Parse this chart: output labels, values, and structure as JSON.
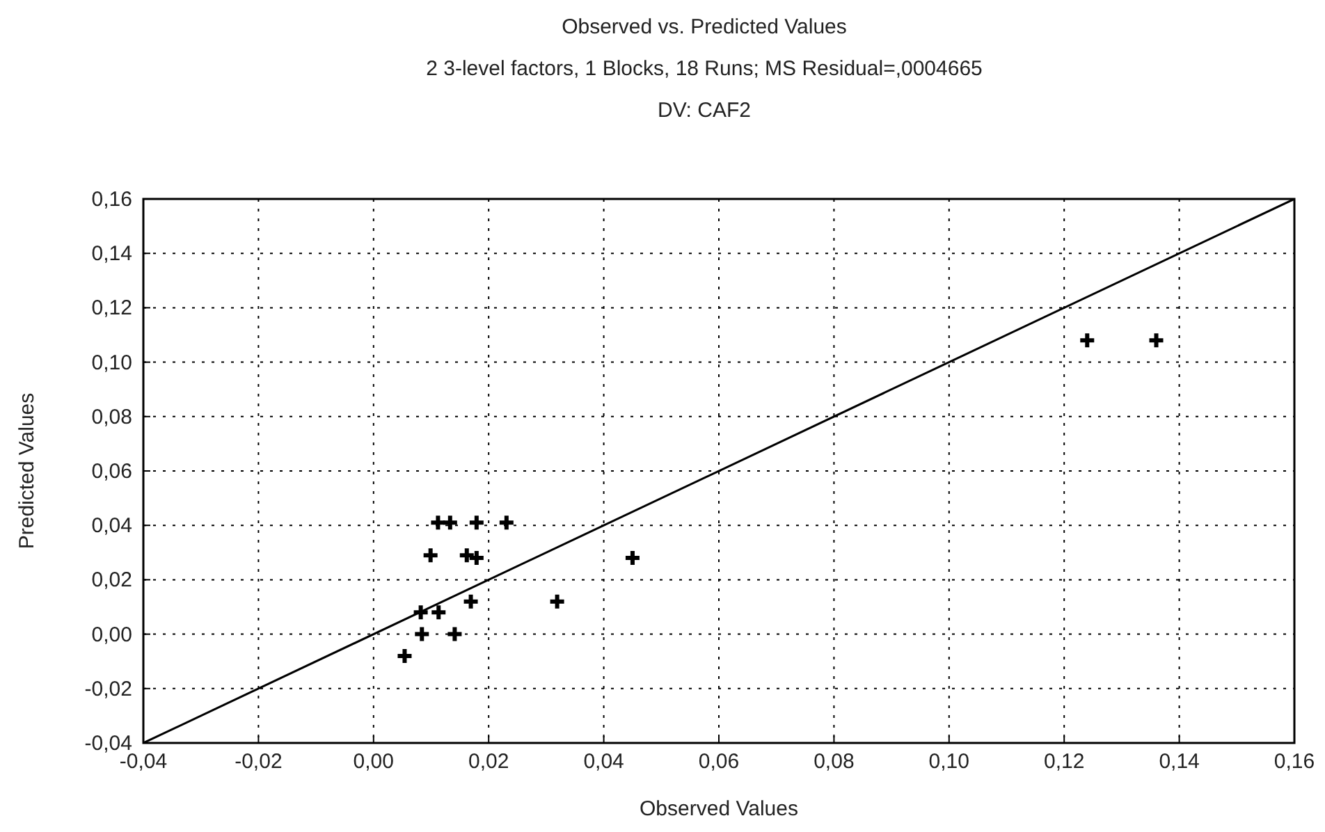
{
  "chart_data": {
    "type": "scatter",
    "title": "Observed vs. Predicted Values",
    "subtitle": "2 3-level factors, 1 Blocks, 18 Runs; MS Residual=,0004665",
    "annotations": [
      "DV: CAF2"
    ],
    "xlabel": "Observed Values",
    "ylabel": "Predicted Values",
    "xlim": [
      -0.04,
      0.16
    ],
    "ylim": [
      -0.04,
      0.16
    ],
    "xticks": [
      {
        "value": -0.04,
        "label": "-0,04"
      },
      {
        "value": -0.02,
        "label": "-0,02"
      },
      {
        "value": 0,
        "label": "0,00"
      },
      {
        "value": 0.02,
        "label": "0,02"
      },
      {
        "value": 0.04,
        "label": "0,04"
      },
      {
        "value": 0.06,
        "label": "0,06"
      },
      {
        "value": 0.08,
        "label": "0,08"
      },
      {
        "value": 0.1,
        "label": "0,10"
      },
      {
        "value": 0.12,
        "label": "0,12"
      },
      {
        "value": 0.14,
        "label": "0,14"
      },
      {
        "value": 0.16,
        "label": "0,16"
      }
    ],
    "yticks": [
      {
        "value": -0.04,
        "label": "-0,04"
      },
      {
        "value": -0.02,
        "label": "-0,02"
      },
      {
        "value": 0,
        "label": "0,00"
      },
      {
        "value": 0.02,
        "label": "0,02"
      },
      {
        "value": 0.04,
        "label": "0,04"
      },
      {
        "value": 0.06,
        "label": "0,06"
      },
      {
        "value": 0.08,
        "label": "0,08"
      },
      {
        "value": 0.1,
        "label": "0,10"
      },
      {
        "value": 0.12,
        "label": "0,12"
      },
      {
        "value": 0.14,
        "label": "0,14"
      },
      {
        "value": 0.16,
        "label": "0,16"
      }
    ],
    "grid": true,
    "series": [
      {
        "type": "scatter",
        "color": "#000000",
        "marker": "cross",
        "x": [
          0.0054,
          0.0084,
          0.0141,
          0.0082,
          0.0113,
          0.0169,
          0.0319,
          0.0099,
          0.0162,
          0.0179,
          0.045,
          0.0112,
          0.0133,
          0.0179,
          0.0231,
          0.124,
          0.136
        ],
        "values": [
          -0.008,
          0,
          0,
          0.008,
          0.008,
          0.012,
          0.012,
          0.029,
          0.029,
          0.028,
          0.028,
          0.041,
          0.041,
          0.041,
          0.041,
          0.108,
          0.108
        ]
      },
      {
        "type": "line",
        "color": "#000000",
        "marker": "none",
        "line_style": "solid",
        "x": [
          -0.04,
          0.16
        ],
        "values": [
          -0.04,
          0.16
        ]
      }
    ]
  }
}
